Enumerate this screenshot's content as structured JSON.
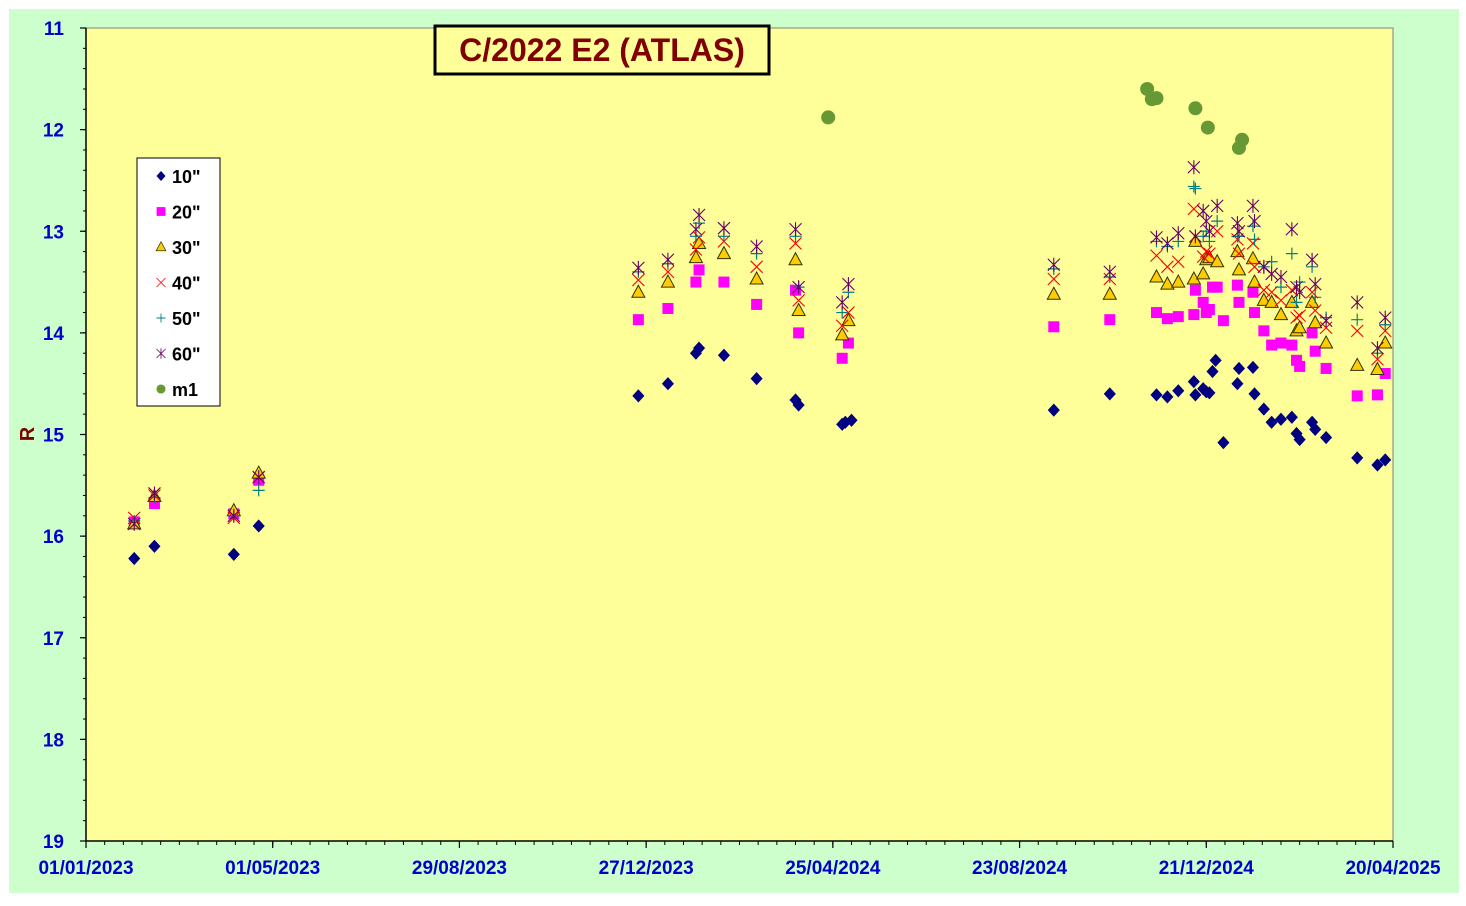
{
  "chart_data": {
    "type": "scatter",
    "title": "C/2022 E2 (ATLAS)",
    "ylabel": "R",
    "xlabel": "",
    "x_ticks": [
      "01/01/2023",
      "01/05/2023",
      "29/08/2023",
      "27/12/2023",
      "25/04/2024",
      "23/08/2024",
      "21/12/2024",
      "20/04/2025"
    ],
    "y_ticks": [
      "11",
      "12",
      "13",
      "14",
      "15",
      "16",
      "17",
      "18",
      "19"
    ],
    "x_range": [
      "2023-01-01",
      "2025-04-20"
    ],
    "y_range": [
      11,
      19
    ],
    "y_inverted": true,
    "grid": false,
    "legend_position": "left",
    "colors": {
      "outer_background": "#ccffcc",
      "plot_background": "#ffff99",
      "title_text": "#800000",
      "axis_labels": "#0000cc",
      "ylabel": "#800000"
    },
    "series": [
      {
        "name": "10\"",
        "marker": "diamond",
        "color": "#000080",
        "points": [
          [
            "2023-02-01",
            16.22
          ],
          [
            "2023-02-14",
            16.1
          ],
          [
            "2023-04-06",
            16.18
          ],
          [
            "2023-04-22",
            15.9
          ],
          [
            "2023-12-22",
            14.62
          ],
          [
            "2024-01-10",
            14.5
          ],
          [
            "2024-01-28",
            14.2
          ],
          [
            "2024-01-30",
            14.15
          ],
          [
            "2024-02-15",
            14.22
          ],
          [
            "2024-03-07",
            14.45
          ],
          [
            "2024-04-01",
            14.66
          ],
          [
            "2024-04-03",
            14.71
          ],
          [
            "2024-05-01",
            14.9
          ],
          [
            "2024-05-03",
            14.88
          ],
          [
            "2024-05-07",
            14.86
          ],
          [
            "2024-09-14",
            14.76
          ],
          [
            "2024-10-20",
            14.6
          ],
          [
            "2024-11-19",
            14.61
          ],
          [
            "2024-11-26",
            14.63
          ],
          [
            "2024-12-03",
            14.57
          ],
          [
            "2024-12-13",
            14.48
          ],
          [
            "2024-12-14",
            14.61
          ],
          [
            "2024-12-19",
            14.55
          ],
          [
            "2024-12-21",
            14.58
          ],
          [
            "2024-12-23",
            14.59
          ],
          [
            "2024-12-25",
            14.38
          ],
          [
            "2024-12-27",
            14.27
          ],
          [
            "2025-01-01",
            15.08
          ],
          [
            "2025-01-10",
            14.5
          ],
          [
            "2025-01-11",
            14.35
          ],
          [
            "2025-01-20",
            14.34
          ],
          [
            "2025-01-21",
            14.6
          ],
          [
            "2025-01-27",
            14.75
          ],
          [
            "2025-02-01",
            14.88
          ],
          [
            "2025-02-07",
            14.85
          ],
          [
            "2025-02-14",
            14.83
          ],
          [
            "2025-02-17",
            14.99
          ],
          [
            "2025-02-19",
            15.05
          ],
          [
            "2025-02-27",
            14.88
          ],
          [
            "2025-03-01",
            14.95
          ],
          [
            "2025-03-08",
            15.03
          ],
          [
            "2025-03-28",
            15.23
          ],
          [
            "2025-04-10",
            15.3
          ],
          [
            "2025-04-15",
            15.25
          ]
        ]
      },
      {
        "name": "20\"",
        "marker": "square",
        "color": "#ff00ff",
        "points": [
          [
            "2023-02-01",
            15.86
          ],
          [
            "2023-02-14",
            15.68
          ],
          [
            "2023-04-06",
            15.78
          ],
          [
            "2023-04-22",
            15.45
          ],
          [
            "2023-12-22",
            13.87
          ],
          [
            "2024-01-10",
            13.76
          ],
          [
            "2024-01-28",
            13.5
          ],
          [
            "2024-01-30",
            13.38
          ],
          [
            "2024-02-15",
            13.5
          ],
          [
            "2024-03-07",
            13.72
          ],
          [
            "2024-04-01",
            13.58
          ],
          [
            "2024-04-03",
            14.0
          ],
          [
            "2024-05-01",
            14.25
          ],
          [
            "2024-05-05",
            14.1
          ],
          [
            "2024-09-14",
            13.94
          ],
          [
            "2024-10-20",
            13.87
          ],
          [
            "2024-11-19",
            13.8
          ],
          [
            "2024-11-26",
            13.86
          ],
          [
            "2024-12-03",
            13.84
          ],
          [
            "2024-12-13",
            13.82
          ],
          [
            "2024-12-14",
            13.58
          ],
          [
            "2024-12-19",
            13.7
          ],
          [
            "2024-12-21",
            13.8
          ],
          [
            "2024-12-23",
            13.77
          ],
          [
            "2024-12-25",
            13.55
          ],
          [
            "2024-12-28",
            13.55
          ],
          [
            "2025-01-01",
            13.88
          ],
          [
            "2025-01-10",
            13.53
          ],
          [
            "2025-01-11",
            13.7
          ],
          [
            "2025-01-20",
            13.6
          ],
          [
            "2025-01-21",
            13.8
          ],
          [
            "2025-01-27",
            13.98
          ],
          [
            "2025-02-01",
            14.12
          ],
          [
            "2025-02-07",
            14.1
          ],
          [
            "2025-02-14",
            14.12
          ],
          [
            "2025-02-17",
            14.27
          ],
          [
            "2025-02-19",
            14.33
          ],
          [
            "2025-02-27",
            14.0
          ],
          [
            "2025-03-01",
            14.18
          ],
          [
            "2025-03-08",
            14.35
          ],
          [
            "2025-03-28",
            14.62
          ],
          [
            "2025-04-10",
            14.61
          ],
          [
            "2025-04-15",
            14.4
          ]
        ]
      },
      {
        "name": "30\"",
        "marker": "triangle",
        "color": "#ffcc00",
        "points": [
          [
            "2023-02-01",
            15.88
          ],
          [
            "2023-02-14",
            15.61
          ],
          [
            "2023-04-06",
            15.75
          ],
          [
            "2023-04-22",
            15.38
          ],
          [
            "2023-12-22",
            13.6
          ],
          [
            "2024-01-10",
            13.5
          ],
          [
            "2024-01-28",
            13.26
          ],
          [
            "2024-01-30",
            13.12
          ],
          [
            "2024-02-15",
            13.22
          ],
          [
            "2024-03-07",
            13.47
          ],
          [
            "2024-04-01",
            13.28
          ],
          [
            "2024-04-03",
            13.78
          ],
          [
            "2024-05-01",
            14.02
          ],
          [
            "2024-05-05",
            13.88
          ],
          [
            "2024-09-14",
            13.62
          ],
          [
            "2024-10-20",
            13.62
          ],
          [
            "2024-11-19",
            13.45
          ],
          [
            "2024-11-26",
            13.52
          ],
          [
            "2024-12-03",
            13.5
          ],
          [
            "2024-12-13",
            13.47
          ],
          [
            "2024-12-14",
            13.1
          ],
          [
            "2024-12-19",
            13.42
          ],
          [
            "2024-12-21",
            13.28
          ],
          [
            "2024-12-23",
            13.26
          ],
          [
            "2024-12-28",
            13.3
          ],
          [
            "2025-01-10",
            13.2
          ],
          [
            "2025-01-11",
            13.38
          ],
          [
            "2025-01-20",
            13.27
          ],
          [
            "2025-01-21",
            13.5
          ],
          [
            "2025-01-27",
            13.68
          ],
          [
            "2025-02-01",
            13.7
          ],
          [
            "2025-02-07",
            13.82
          ],
          [
            "2025-02-14",
            13.7
          ],
          [
            "2025-02-17",
            13.98
          ],
          [
            "2025-02-19",
            13.95
          ],
          [
            "2025-02-27",
            13.7
          ],
          [
            "2025-03-01",
            13.9
          ],
          [
            "2025-03-08",
            14.1
          ],
          [
            "2025-03-28",
            14.32
          ],
          [
            "2025-04-10",
            14.36
          ],
          [
            "2025-04-15",
            14.1
          ]
        ]
      },
      {
        "name": "40\"",
        "marker": "x",
        "color": "#ff0000",
        "points": [
          [
            "2023-02-01",
            15.82
          ],
          [
            "2023-02-14",
            15.6
          ],
          [
            "2023-04-06",
            15.82
          ],
          [
            "2023-04-22",
            15.42
          ],
          [
            "2023-12-22",
            13.48
          ],
          [
            "2024-01-10",
            13.4
          ],
          [
            "2024-01-28",
            13.18
          ],
          [
            "2024-01-30",
            13.06
          ],
          [
            "2024-02-15",
            13.1
          ],
          [
            "2024-03-07",
            13.35
          ],
          [
            "2024-04-01",
            13.12
          ],
          [
            "2024-04-03",
            13.68
          ],
          [
            "2024-05-01",
            13.93
          ],
          [
            "2024-05-05",
            13.8
          ],
          [
            "2024-09-14",
            13.47
          ],
          [
            "2024-10-20",
            13.47
          ],
          [
            "2024-11-19",
            13.24
          ],
          [
            "2024-11-26",
            13.35
          ],
          [
            "2024-12-03",
            13.3
          ],
          [
            "2024-12-13",
            12.78
          ],
          [
            "2024-12-14",
            13.05
          ],
          [
            "2024-12-19",
            13.25
          ],
          [
            "2024-12-21",
            13.2
          ],
          [
            "2024-12-23",
            13.22
          ],
          [
            "2024-12-28",
            13.0
          ],
          [
            "2025-01-10",
            13.08
          ],
          [
            "2025-01-11",
            13.22
          ],
          [
            "2025-01-20",
            13.12
          ],
          [
            "2025-01-21",
            13.35
          ],
          [
            "2025-01-27",
            13.58
          ],
          [
            "2025-02-01",
            13.6
          ],
          [
            "2025-02-07",
            13.68
          ],
          [
            "2025-02-14",
            13.58
          ],
          [
            "2025-02-17",
            13.85
          ],
          [
            "2025-02-19",
            13.83
          ],
          [
            "2025-02-27",
            13.6
          ],
          [
            "2025-03-01",
            13.78
          ],
          [
            "2025-03-08",
            13.95
          ],
          [
            "2025-03-28",
            13.98
          ],
          [
            "2025-04-10",
            14.26
          ],
          [
            "2025-04-15",
            13.98
          ]
        ]
      },
      {
        "name": "50\"",
        "marker": "plus",
        "color": "#008080",
        "points": [
          [
            "2023-02-01",
            15.85
          ],
          [
            "2023-02-14",
            15.62
          ],
          [
            "2023-04-06",
            15.8
          ],
          [
            "2023-04-22",
            15.55
          ],
          [
            "2023-12-22",
            13.4
          ],
          [
            "2024-01-10",
            13.32
          ],
          [
            "2024-01-28",
            13.05
          ],
          [
            "2024-01-30",
            12.92
          ],
          [
            "2024-02-15",
            13.05
          ],
          [
            "2024-03-07",
            13.22
          ],
          [
            "2024-04-01",
            13.05
          ],
          [
            "2024-04-03",
            13.55
          ],
          [
            "2024-05-01",
            13.8
          ],
          [
            "2024-05-05",
            13.6
          ],
          [
            "2024-09-14",
            13.37
          ],
          [
            "2024-10-20",
            13.45
          ],
          [
            "2024-11-19",
            13.1
          ],
          [
            "2024-11-26",
            13.15
          ],
          [
            "2024-12-03",
            13.1
          ],
          [
            "2024-12-13",
            12.56
          ],
          [
            "2024-12-14",
            12.58
          ],
          [
            "2024-12-19",
            13.05
          ],
          [
            "2024-12-21",
            13.0
          ],
          [
            "2024-12-23",
            13.1
          ],
          [
            "2024-12-28",
            12.9
          ],
          [
            "2025-01-10",
            13.05
          ],
          [
            "2025-01-11",
            13.05
          ],
          [
            "2025-01-20",
            12.95
          ],
          [
            "2025-01-21",
            13.08
          ],
          [
            "2025-01-27",
            13.35
          ],
          [
            "2025-02-01",
            13.3
          ],
          [
            "2025-02-07",
            13.55
          ],
          [
            "2025-02-14",
            13.22
          ],
          [
            "2025-02-17",
            13.7
          ],
          [
            "2025-02-19",
            13.5
          ],
          [
            "2025-02-27",
            13.35
          ],
          [
            "2025-03-01",
            13.65
          ],
          [
            "2025-03-08",
            13.85
          ],
          [
            "2025-03-28",
            13.87
          ],
          [
            "2025-04-10",
            14.2
          ],
          [
            "2025-04-15",
            13.92
          ]
        ]
      },
      {
        "name": "60\"",
        "marker": "star",
        "color": "#660066",
        "points": [
          [
            "2023-02-01",
            15.88
          ],
          [
            "2023-02-14",
            15.58
          ],
          [
            "2023-04-06",
            15.8
          ],
          [
            "2023-04-22",
            15.42
          ],
          [
            "2023-12-22",
            13.36
          ],
          [
            "2024-01-10",
            13.28
          ],
          [
            "2024-01-28",
            12.98
          ],
          [
            "2024-01-30",
            12.84
          ],
          [
            "2024-02-15",
            12.97
          ],
          [
            "2024-03-07",
            13.15
          ],
          [
            "2024-04-01",
            12.98
          ],
          [
            "2024-04-03",
            13.55
          ],
          [
            "2024-05-01",
            13.7
          ],
          [
            "2024-05-05",
            13.52
          ],
          [
            "2024-09-14",
            13.33
          ],
          [
            "2024-10-20",
            13.4
          ],
          [
            "2024-11-19",
            13.06
          ],
          [
            "2024-11-26",
            13.12
          ],
          [
            "2024-12-03",
            13.02
          ],
          [
            "2024-12-13",
            12.37
          ],
          [
            "2024-12-14",
            13.05
          ],
          [
            "2024-12-19",
            12.8
          ],
          [
            "2024-12-21",
            12.9
          ],
          [
            "2024-12-23",
            13.0
          ],
          [
            "2024-12-28",
            12.75
          ],
          [
            "2025-01-10",
            12.92
          ],
          [
            "2025-01-11",
            13.0
          ],
          [
            "2025-01-20",
            12.75
          ],
          [
            "2025-01-21",
            12.9
          ],
          [
            "2025-01-27",
            13.35
          ],
          [
            "2025-02-01",
            13.42
          ],
          [
            "2025-02-07",
            13.45
          ],
          [
            "2025-02-14",
            12.98
          ],
          [
            "2025-02-17",
            13.55
          ],
          [
            "2025-02-19",
            13.6
          ],
          [
            "2025-02-27",
            13.28
          ],
          [
            "2025-03-01",
            13.52
          ],
          [
            "2025-03-08",
            13.88
          ],
          [
            "2025-03-28",
            13.7
          ],
          [
            "2025-04-10",
            14.15
          ],
          [
            "2025-04-15",
            13.85
          ]
        ]
      },
      {
        "name": "m1",
        "marker": "circle",
        "color": "#669933",
        "points": [
          [
            "2024-04-22",
            11.88
          ],
          [
            "2024-11-13",
            11.6
          ],
          [
            "2024-11-16",
            11.7
          ],
          [
            "2024-11-19",
            11.69
          ],
          [
            "2024-12-14",
            11.79
          ],
          [
            "2024-12-22",
            11.98
          ],
          [
            "2025-01-11",
            12.18
          ],
          [
            "2025-01-13",
            12.1
          ]
        ]
      }
    ]
  }
}
